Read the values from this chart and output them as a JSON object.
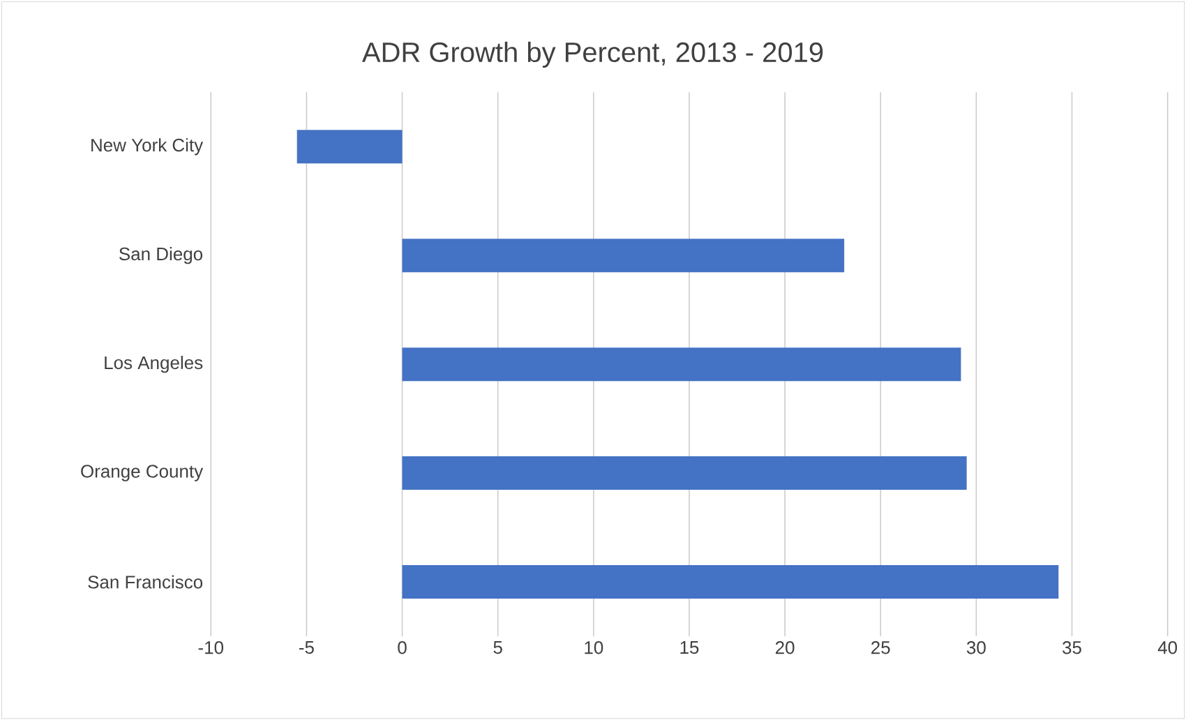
{
  "chart_data": {
    "type": "bar",
    "orientation": "horizontal",
    "title": "ADR Growth by Percent, 2013 - 2019",
    "categories": [
      "New York City",
      "San Diego",
      "Los Angeles",
      "Orange County",
      "San Francisco"
    ],
    "values": [
      -5.5,
      23.1,
      29.2,
      29.5,
      34.3
    ],
    "color": "#4472c4",
    "xlim": [
      -10,
      40
    ],
    "xticks": [
      -10,
      -5,
      0,
      5,
      10,
      15,
      20,
      25,
      30,
      35,
      40
    ],
    "grid": "x"
  }
}
